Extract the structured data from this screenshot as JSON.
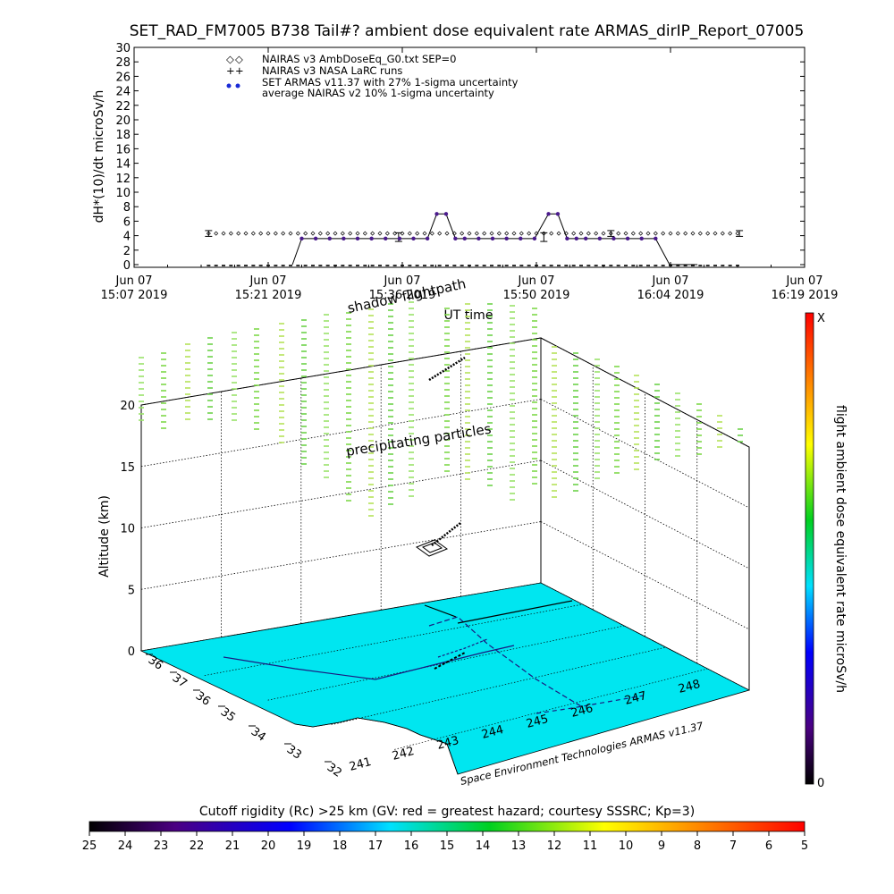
{
  "page_title": "SET_RAD_FM7005  B738 Tail#? ambient dose equivalent rate ARMAS_dirIP_Report_07005",
  "chart_data": [
    {
      "type": "scatter",
      "ylabel": "dH*(10)/dt microSv/h",
      "xlabel": "UT time",
      "ylim": [
        0,
        30
      ],
      "ytick_step": 2,
      "xlim_minutes": [
        0,
        72
      ],
      "xticks": [
        {
          "date": "Jun 07",
          "time": "15:07 2019"
        },
        {
          "date": "Jun 07",
          "time": "15:21 2019"
        },
        {
          "date": "Jun 07",
          "time": "15:36 2019"
        },
        {
          "date": "Jun 07",
          "time": "15:50 2019"
        },
        {
          "date": "Jun 07",
          "time": "16:04 2019"
        },
        {
          "date": "Jun 07",
          "time": "16:19 2019"
        }
      ],
      "legend_position": "top-left",
      "legend": [
        {
          "marker": "◇",
          "label": "NAIRAS v3 AmbDoseEq_G0.txt SEP=0",
          "color": "#000000"
        },
        {
          "marker": "+",
          "label": "NAIRAS v3 NASA LaRC runs",
          "color": "#000000"
        },
        {
          "marker": "●",
          "label": "SET ARMAS v11.37 with 27% 1-sigma uncertainty",
          "color": "#1a2bd6"
        },
        {
          "marker": "",
          "label": "average NAIRAS v2 10% 1-sigma uncertainty",
          "color": "#000000"
        }
      ],
      "series": [
        {
          "name": "NAIRAS v3 AmbDoseEq_G0.txt SEP=0",
          "marker": "diamond",
          "x_start": 8,
          "x_end": 65,
          "x_step": 0.8,
          "y": 4.3,
          "errorbars": [
            {
              "x": 8,
              "y": 4.3,
              "err": 0.4
            },
            {
              "x": 28.4,
              "y": 3.8,
              "err": 0.6
            },
            {
              "x": 44,
              "y": 3.8,
              "err": 0.6
            },
            {
              "x": 51.2,
              "y": 4.3,
              "err": 0.4
            },
            {
              "x": 65,
              "y": 4.3,
              "err": 0.4
            }
          ]
        },
        {
          "name": "NAIRAS v3 NASA LaRC runs",
          "marker": "plus",
          "x_start": 8,
          "x_end": 65,
          "x_step": 0.8,
          "y": 0
        },
        {
          "name": "SET ARMAS v11.37 with 27% 1-sigma uncertainty",
          "color": "#4a1a8c",
          "x": [
            17,
            18,
            19.5,
            21,
            22.5,
            24,
            25.5,
            27,
            28.5,
            30,
            31.5,
            32.5,
            33.5,
            34.5,
            35.5,
            37,
            38.5,
            40,
            41.5,
            43,
            44.5,
            45.5,
            46.5,
            47.5,
            48.5,
            50,
            51.5,
            53,
            54.5,
            56,
            57.5,
            59,
            60.5
          ],
          "y": [
            0,
            3.6,
            3.6,
            3.6,
            3.6,
            3.6,
            3.6,
            3.6,
            3.6,
            3.6,
            3.6,
            7,
            7,
            3.6,
            3.6,
            3.6,
            3.6,
            3.6,
            3.6,
            3.6,
            7,
            7,
            3.6,
            3.6,
            3.6,
            3.6,
            3.6,
            3.6,
            3.6,
            3.6,
            0,
            0,
            0
          ],
          "baseline_x_start": 8,
          "baseline_x_end": 65
        }
      ]
    },
    {
      "type": "scatter",
      "projection": "3d",
      "zlabel": "Altitude (km)",
      "zlim": [
        0,
        20
      ],
      "zticks": [
        0,
        5,
        10,
        15,
        20
      ],
      "lat_ticks": [
        36,
        37,
        36,
        35,
        34,
        33,
        32
      ],
      "lon_ticks": [
        241,
        242,
        243,
        244,
        245,
        246,
        247,
        248
      ],
      "annotations": [
        "shadow flightpath",
        "precipitating particles"
      ],
      "credit": "Space Environment Technologies ARMAS v11.37",
      "colorbar": {
        "label": "flight ambient dose equivalent rate microSv/h",
        "top": "X",
        "bottom": "0"
      },
      "surface_color": "#00e6f0"
    },
    {
      "type": "heatmap",
      "title": "Cutoff rigidity (Rc) >25 km (GV: red = greatest hazard; courtesy SSSRC; Kp=3)",
      "ticks": [
        25,
        24,
        23,
        22,
        21,
        20,
        19,
        18,
        17,
        16,
        15,
        14,
        13,
        12,
        11,
        10,
        9,
        8,
        7,
        6,
        5
      ]
    }
  ]
}
